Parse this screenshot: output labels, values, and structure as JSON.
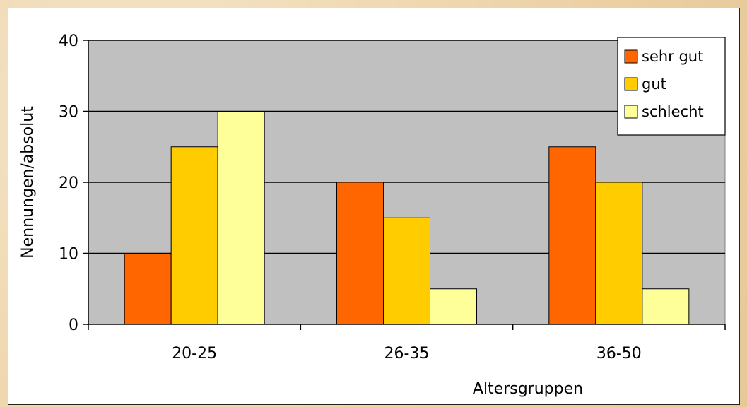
{
  "chart_data": {
    "type": "bar",
    "title": "",
    "xlabel": "Altersgruppen",
    "ylabel": "Nennungen/absolut",
    "categories": [
      "20-25",
      "26-35",
      "36-50"
    ],
    "series": [
      {
        "name": "sehr gut",
        "values": [
          10,
          20,
          25
        ],
        "color": "#ff6600"
      },
      {
        "name": "gut",
        "values": [
          25,
          15,
          20
        ],
        "color": "#ffcc00"
      },
      {
        "name": "schlecht",
        "values": [
          30,
          5,
          5
        ],
        "color": "#ffff99"
      }
    ],
    "ylim": [
      0,
      40
    ],
    "yticks": [
      0,
      10,
      20,
      30,
      40
    ],
    "grid": true,
    "legend_position": "top-right",
    "plot_background": "#c0c0c0"
  }
}
